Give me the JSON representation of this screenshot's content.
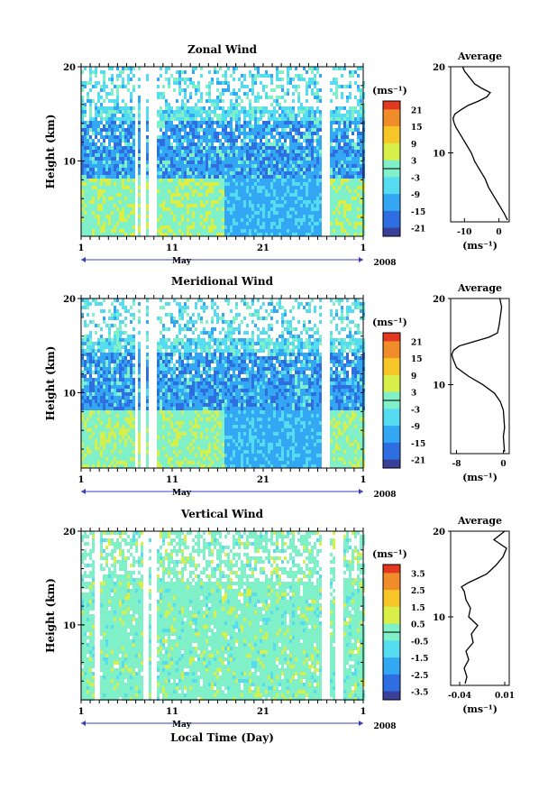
{
  "chart_data": [
    {
      "type": "heatmap",
      "title": "Zonal Wind",
      "xlabel": "May",
      "ylabel": "Height (km)",
      "xlim": [
        1,
        32
      ],
      "x_tick_labels": [
        "1",
        "11",
        "21",
        "1"
      ],
      "ylim": [
        2,
        20
      ],
      "y_tick_labels": [
        "20",
        "10"
      ],
      "year_label": "2008",
      "colorbar": {
        "unit": "(ms⁻¹)",
        "ticks": [
          "21",
          "15",
          "9",
          "3",
          "-3",
          "-9",
          "-15",
          "-21"
        ],
        "range": [
          -24,
          24
        ]
      },
      "profile": {
        "title": "Average",
        "xlabel": "(ms⁻¹)",
        "x_tick_labels": [
          "-10",
          "0"
        ],
        "xlim": [
          -14,
          3
        ],
        "y_tick_labels": [
          "20",
          "10"
        ],
        "height_km": [
          2.2,
          3,
          4,
          5,
          6,
          7,
          8,
          9,
          10,
          11,
          12,
          13,
          13.5,
          14,
          14.5,
          15,
          15.5,
          16,
          16.5,
          17,
          17.5,
          18,
          18.5,
          19,
          19.5,
          20
        ],
        "value": [
          2.5,
          1.5,
          0,
          -1.5,
          -3,
          -4,
          -5.5,
          -7,
          -8,
          -9.5,
          -11,
          -12.5,
          -13,
          -13.3,
          -12.8,
          -11,
          -9,
          -6,
          -3.5,
          -2.5,
          -5,
          -7,
          -8,
          -9,
          -10,
          -10.5
        ]
      }
    },
    {
      "type": "heatmap",
      "title": "Meridional Wind",
      "xlabel": "May",
      "ylabel": "Height (km)",
      "xlim": [
        1,
        32
      ],
      "x_tick_labels": [
        "1",
        "11",
        "21",
        "1"
      ],
      "ylim": [
        2,
        20
      ],
      "y_tick_labels": [
        "20",
        "10"
      ],
      "year_label": "2008",
      "colorbar": {
        "unit": "(ms⁻¹)",
        "ticks": [
          "21",
          "15",
          "9",
          "3",
          "-3",
          "-9",
          "-15",
          "-21"
        ],
        "range": [
          -24,
          24
        ]
      },
      "profile": {
        "title": "Average",
        "xlabel": "(ms⁻¹)",
        "x_tick_labels": [
          "-8",
          "0"
        ],
        "xlim": [
          -9,
          1
        ],
        "y_tick_labels": [
          "20",
          "10"
        ],
        "height_km": [
          2.2,
          3,
          4,
          5,
          6,
          7,
          8,
          9,
          10,
          11,
          12,
          13,
          13.5,
          14,
          14.5,
          15,
          15.5,
          16,
          17,
          18,
          19,
          20
        ],
        "value": [
          0.2,
          0.1,
          0,
          0.2,
          0.1,
          0,
          -0.5,
          -1.5,
          -3.5,
          -6,
          -8,
          -8.6,
          -8.8,
          -8.5,
          -7.5,
          -5,
          -2.5,
          -1,
          -0.7,
          -0.5,
          -0.3,
          -0.6
        ]
      }
    },
    {
      "type": "heatmap",
      "title": "Vertical Wind",
      "xlabel": "May",
      "ylabel": "Height (km)",
      "xlim": [
        1,
        32
      ],
      "x_tick_labels": [
        "1",
        "11",
        "21",
        "1"
      ],
      "ylim": [
        2,
        20
      ],
      "y_tick_labels": [
        "20",
        "10"
      ],
      "year_label": "2008",
      "x_axis_title": "Local Time (Day)",
      "colorbar": {
        "unit": "(ms⁻¹)",
        "ticks": [
          "3.5",
          "2.5",
          "1.5",
          "0.5",
          "-0.5",
          "-1.5",
          "-2.5",
          "-3.5"
        ],
        "range": [
          -4,
          4
        ]
      },
      "profile": {
        "title": "Average",
        "xlabel": "(ms⁻¹)",
        "x_tick_labels": [
          "-0.04",
          "0.01"
        ],
        "xlim": [
          -0.05,
          0.015
        ],
        "y_tick_labels": [
          "20",
          "10"
        ],
        "height_km": [
          2.2,
          3,
          4,
          5,
          6,
          7,
          8,
          9,
          10,
          11,
          12,
          13,
          13.5,
          14,
          14.5,
          15,
          16,
          17,
          18,
          19,
          20
        ],
        "value": [
          -0.034,
          -0.032,
          -0.035,
          -0.03,
          -0.033,
          -0.025,
          -0.027,
          -0.02,
          -0.03,
          -0.028,
          -0.033,
          -0.035,
          -0.038,
          -0.03,
          -0.02,
          -0.01,
          0.0,
          0.008,
          0.012,
          -0.002,
          0.01
        ]
      }
    }
  ],
  "colors": {
    "scale": [
      "#3a3f97",
      "#2f6ee0",
      "#33a7f4",
      "#55dcf0",
      "#7ff0c8",
      "#d7ef48",
      "#f6c628",
      "#f08c2a",
      "#e2381f"
    ]
  }
}
